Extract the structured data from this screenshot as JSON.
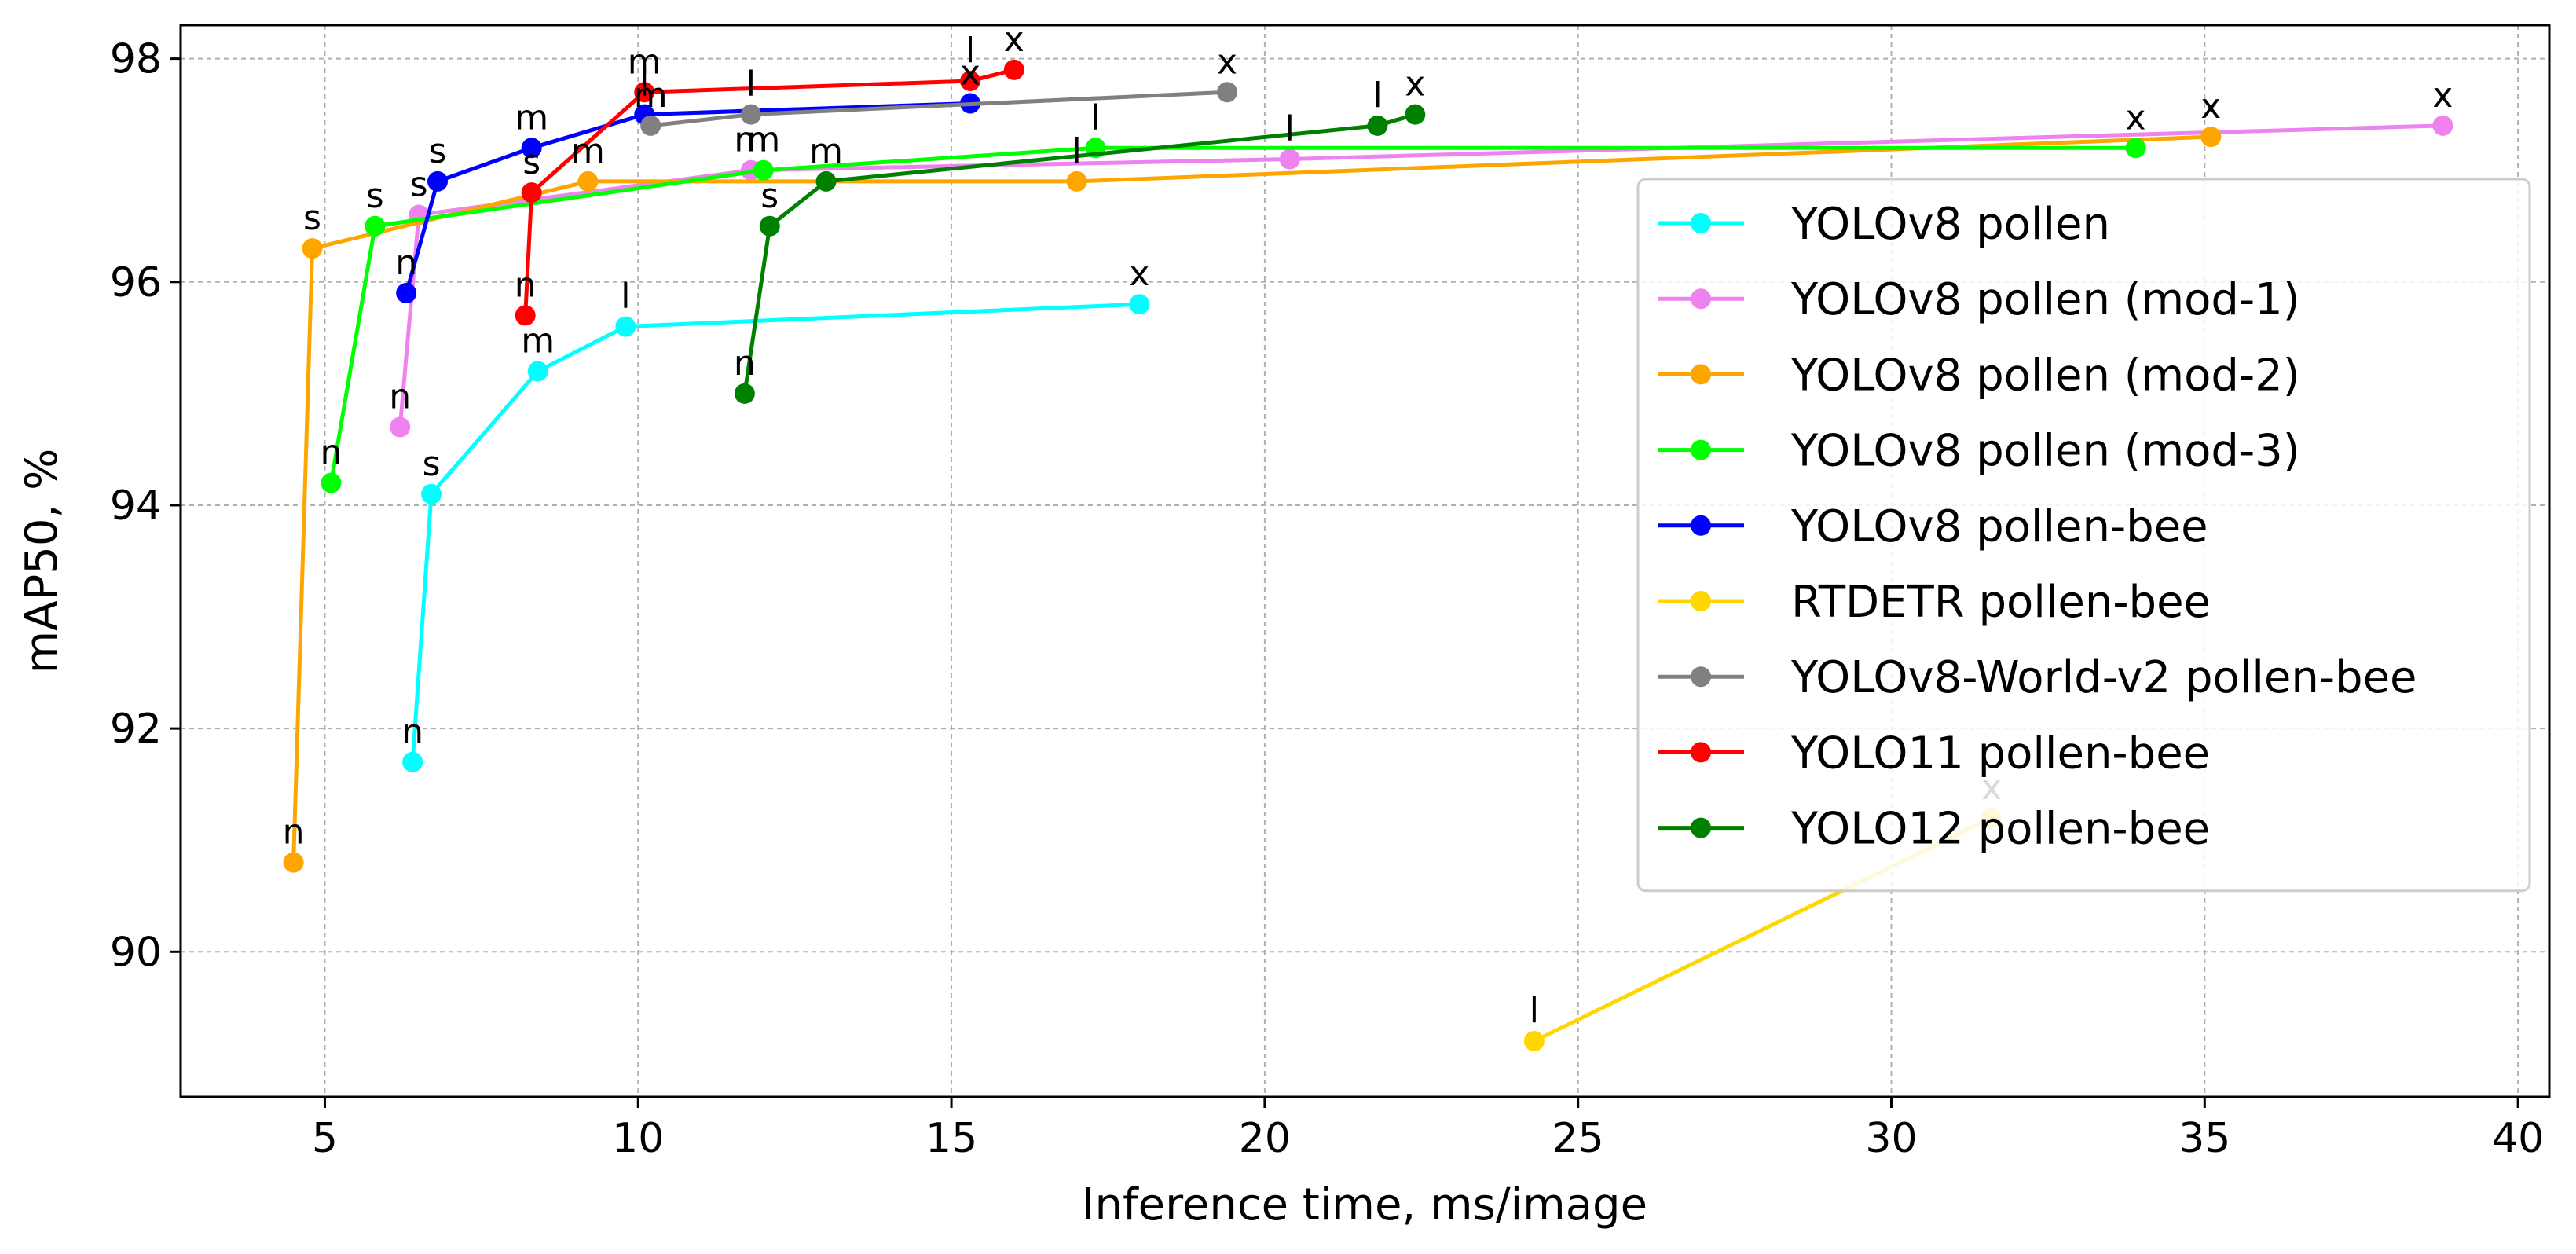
{
  "chart_data": {
    "type": "line",
    "title": "",
    "xlabel": "Inference time, ms/image",
    "ylabel": "mAP50, %",
    "xlim": [
      2.7,
      40.5
    ],
    "ylim": [
      88.7,
      98.3
    ],
    "xticks": [
      5,
      10,
      15,
      20,
      25,
      30,
      35,
      40
    ],
    "yticks": [
      90,
      92,
      94,
      96,
      98
    ],
    "grid": true,
    "legend_position": "right",
    "series": [
      {
        "name": "YOLOv8 pollen",
        "color": "#00ffff",
        "labels": [
          "n",
          "s",
          "m",
          "l",
          "x"
        ],
        "x": [
          6.4,
          6.7,
          8.4,
          9.8,
          18.0
        ],
        "y": [
          91.7,
          94.1,
          95.2,
          95.6,
          95.8
        ]
      },
      {
        "name": "YOLOv8 pollen (mod-1)",
        "color": "#ee82ee",
        "labels": [
          "n",
          "s",
          "m",
          "l",
          "x"
        ],
        "x": [
          6.2,
          6.5,
          11.8,
          20.4,
          38.8
        ],
        "y": [
          94.7,
          96.6,
          97.0,
          97.1,
          97.4
        ]
      },
      {
        "name": "YOLOv8 pollen (mod-2)",
        "color": "#ffa500",
        "labels": [
          "n",
          "s",
          "m",
          "l",
          "x"
        ],
        "x": [
          4.5,
          4.8,
          9.2,
          17.0,
          35.1
        ],
        "y": [
          90.8,
          96.3,
          96.9,
          96.9,
          97.3
        ]
      },
      {
        "name": "YOLOv8 pollen (mod-3)",
        "color": "#00ff00",
        "labels": [
          "n",
          "s",
          "m",
          "l",
          "x"
        ],
        "x": [
          5.1,
          5.8,
          12.0,
          17.3,
          33.9
        ],
        "y": [
          94.2,
          96.5,
          97.0,
          97.2,
          97.2
        ]
      },
      {
        "name": "YOLOv8 pollen-bee",
        "color": "#0000ff",
        "labels": [
          "n",
          "s",
          "m",
          "l",
          "x"
        ],
        "x": [
          6.3,
          6.8,
          8.3,
          10.1,
          15.3
        ],
        "y": [
          95.9,
          96.9,
          97.2,
          97.5,
          97.6
        ]
      },
      {
        "name": "RTDETR pollen-bee",
        "color": "#ffd700",
        "labels": [
          "l",
          "x"
        ],
        "x": [
          24.3,
          31.6
        ],
        "y": [
          89.2,
          91.2
        ]
      },
      {
        "name": "YOLOv8-World-v2 pollen-bee",
        "color": "#808080",
        "labels": [
          "m",
          "l",
          "x"
        ],
        "x": [
          10.2,
          11.8,
          19.4
        ],
        "y": [
          97.4,
          97.5,
          97.7
        ]
      },
      {
        "name": "YOLO11 pollen-bee",
        "color": "#ff0000",
        "labels": [
          "n",
          "s",
          "m",
          "l",
          "x"
        ],
        "x": [
          8.2,
          8.3,
          10.1,
          15.3,
          16.0
        ],
        "y": [
          95.7,
          96.8,
          97.7,
          97.8,
          97.9
        ]
      },
      {
        "name": "YOLO12 pollen-bee",
        "color": "#008000",
        "labels": [
          "n",
          "s",
          "m",
          "l",
          "x"
        ],
        "x": [
          11.7,
          12.1,
          13.0,
          21.8,
          22.4
        ],
        "y": [
          95.0,
          96.5,
          96.9,
          97.4,
          97.5
        ]
      }
    ]
  }
}
